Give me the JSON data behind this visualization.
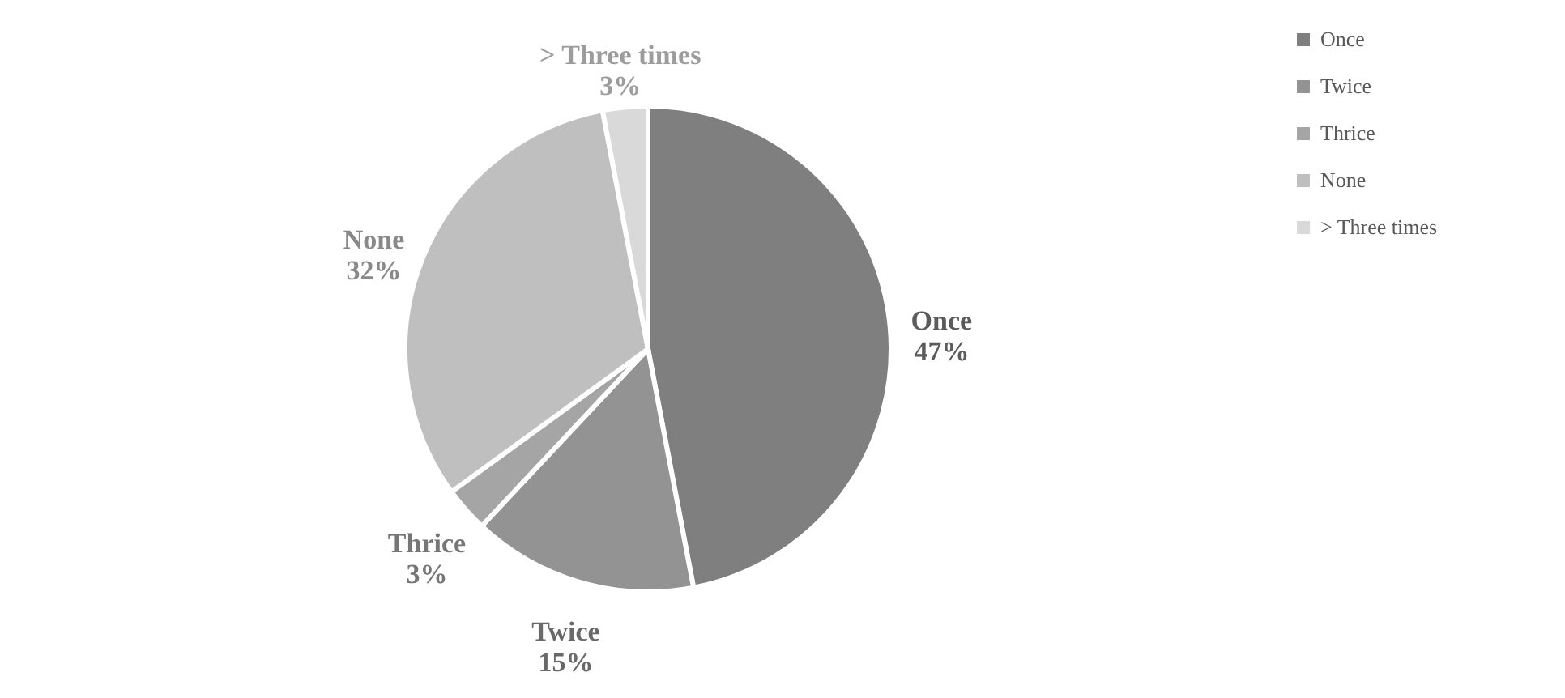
{
  "chart_data": {
    "type": "pie",
    "categories": [
      "Once",
      "Twice",
      "Thrice",
      "None",
      "> Three times"
    ],
    "values": [
      47,
      15,
      3,
      32,
      3
    ],
    "value_labels": [
      "47%",
      "15%",
      "3%",
      "32%",
      "3%"
    ],
    "colors": [
      "#7f7f7f",
      "#939393",
      "#a5a5a5",
      "#bfbfbf",
      "#d9d9d9"
    ],
    "legend": "top right"
  }
}
